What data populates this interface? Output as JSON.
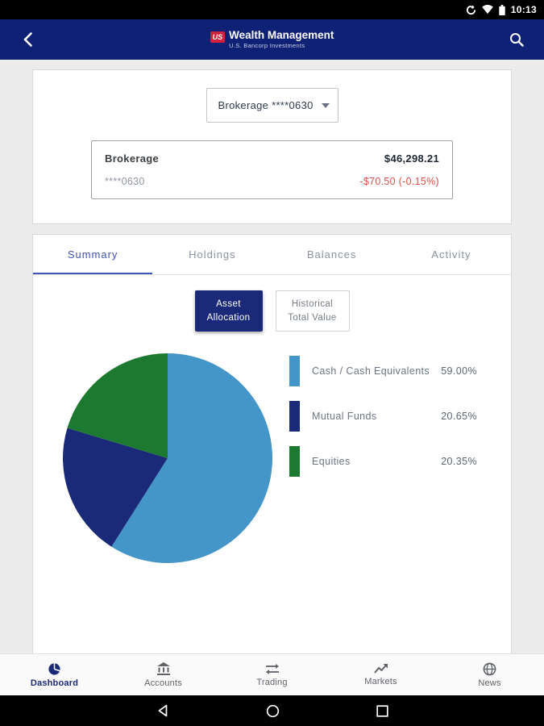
{
  "status_bar": {
    "time": "10:13"
  },
  "header": {
    "logo_badge": "US",
    "logo_title": "Wealth Management",
    "logo_subtitle": "U.S. Bancorp Investments"
  },
  "account_selector": {
    "dropdown_label": "Brokerage ****0630",
    "name": "Brokerage",
    "number": "****0630",
    "value": "$46,298.21",
    "change": "-$70.50 (-0.15%)"
  },
  "tabs": [
    "Summary",
    "Holdings",
    "Balances",
    "Activity"
  ],
  "toggle_buttons": {
    "asset_allocation": [
      "Asset",
      "Allocation"
    ],
    "historical_total_value": [
      "Historical",
      "Total Value"
    ]
  },
  "chart_data": {
    "type": "pie",
    "labels": [
      "Cash / Cash Equivalents",
      "Mutual Funds",
      "Equities"
    ],
    "values": [
      59.0,
      20.65,
      20.35
    ],
    "display_percents": [
      "59.00%",
      "20.65%",
      "20.35%"
    ],
    "colors": [
      "#4596c8",
      "#1b2a78",
      "#1c7a30"
    ],
    "start_angle_deg": 0,
    "direction": "clockwise",
    "legend_position": "right",
    "title": ""
  },
  "bottom_nav": [
    "Dashboard",
    "Accounts",
    "Trading",
    "Markets",
    "News"
  ],
  "colors": {
    "header_navy": "#0e2175",
    "accent_blue": "#3f54b5",
    "active_navy": "#1b2a78",
    "negative_red": "#dd4f4a",
    "badge_red": "#d3213d"
  }
}
